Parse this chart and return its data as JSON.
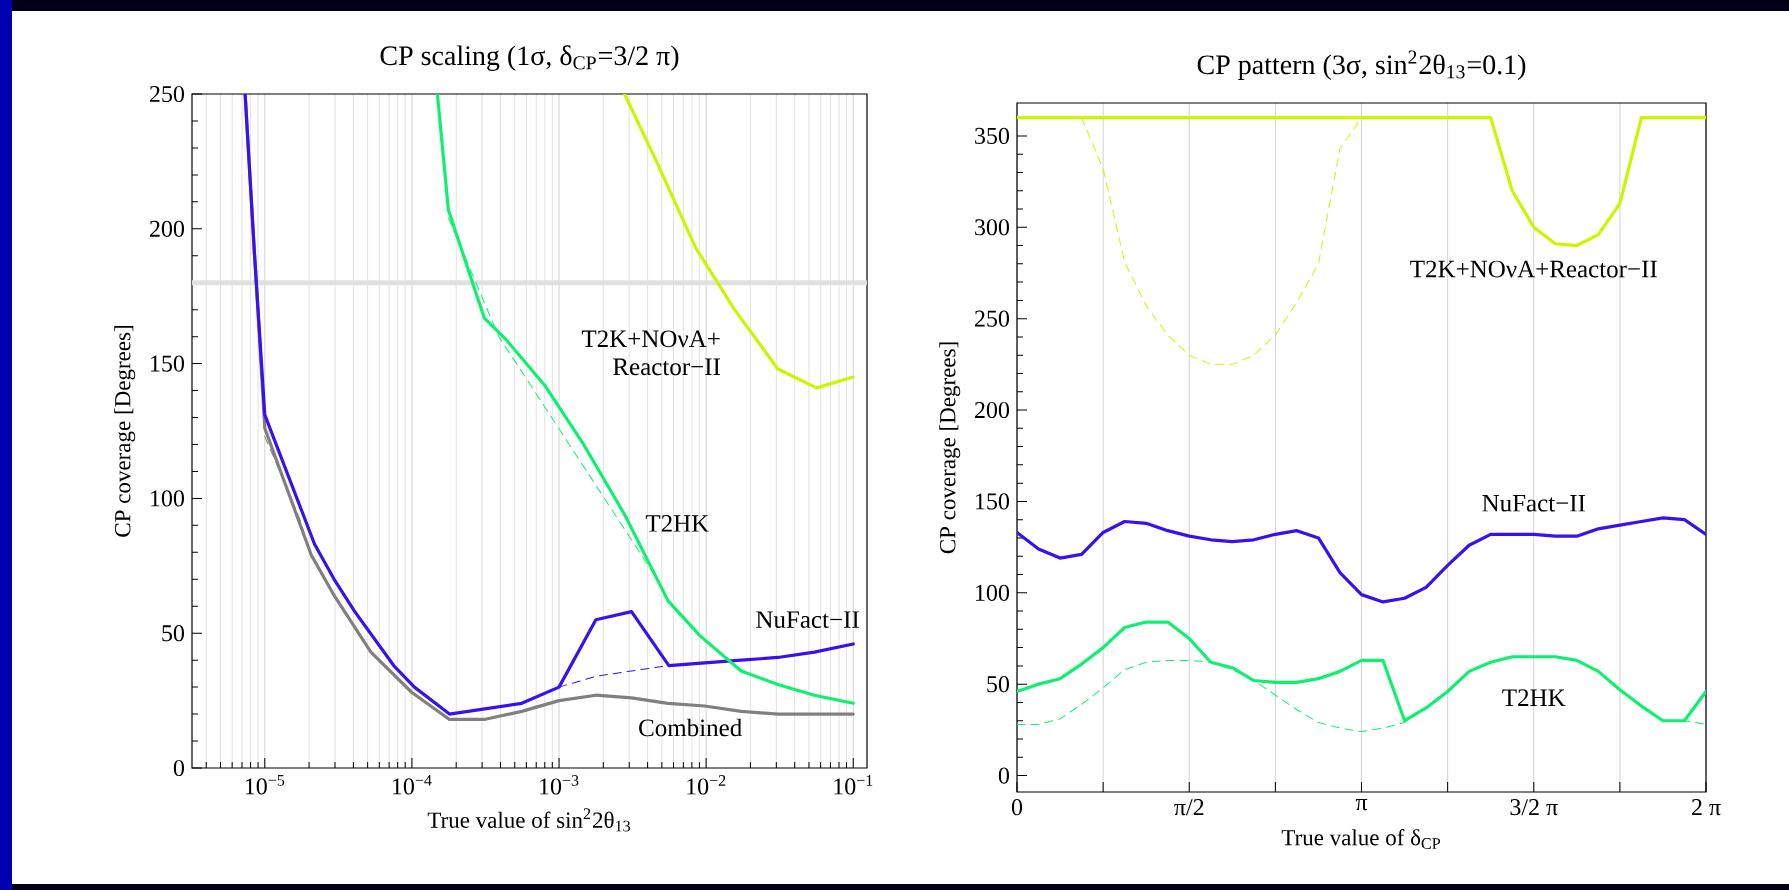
{
  "chart_data": [
    {
      "type": "line",
      "title": "CP scaling (1σ, δ$_{CP}$=3/2 π)",
      "xlabel": "True value of sin$^{2}$2θ$_{13}$",
      "ylabel": "CP coverage [Degrees]",
      "log": "x",
      "grid": "x",
      "marker": "none",
      "line_style": "solid",
      "xlim": [
        3.2e-06,
        0.124
      ],
      "ylim": [
        0,
        250
      ],
      "xticks": [
        {
          "value": 1e-05,
          "label": "10$^{−5}$"
        },
        {
          "value": 0.0001,
          "label": "10$^{−4}$"
        },
        {
          "value": 0.001,
          "label": "10$^{−3}$"
        },
        {
          "value": 0.01,
          "label": "10$^{−2}$"
        },
        {
          "value": 0.1,
          "label": "10$^{−1}$"
        }
      ],
      "yticks": [
        0,
        50,
        100,
        150,
        200,
        250
      ],
      "ref_lines": [
        {
          "axis": "y",
          "value": 180,
          "color": "#e0e0e0"
        }
      ],
      "series": [
        {
          "color": "#808080",
          "line_style": "dashed",
          "x": [
            1e-05,
            1.74e-05,
            2.07e-05
          ],
          "values": [
            123,
            92,
            78
          ]
        },
        {
          "name": "Combined",
          "color": "#808080",
          "x": [
            7.35e-06,
            1e-05,
            2.07e-05,
            2.96e-05,
            5.26e-05,
            0.0001,
            0.00018,
            0.00031,
            0.000558,
            0.001,
            0.00178,
            0.00311,
            0.0055,
            0.00977,
            0.0173,
            0.0307,
            0.0544,
            0.1
          ],
          "values": [
            250,
            126,
            79,
            64,
            43,
            28,
            18,
            18,
            21,
            25,
            27,
            26,
            24,
            23,
            21,
            20,
            20,
            20
          ]
        },
        {
          "color": "#3a10f0",
          "line_style": "dashed",
          "x": [
            0.001,
            0.00178,
            0.00311,
            0.00558
          ],
          "values": [
            30,
            34,
            36,
            38
          ]
        },
        {
          "name": "NuFact−II",
          "color": "#3a10f0",
          "x": [
            7.35e-06,
            8.5e-06,
            1e-05,
            2.18e-05,
            2.96e-05,
            4.09e-05,
            7.52e-05,
            0.000104,
            0.00018,
            0.000558,
            0.001,
            0.00178,
            0.00311,
            0.00558,
            0.00977,
            0.0173,
            0.0307,
            0.0544,
            0.1
          ],
          "values": [
            250,
            191,
            131,
            83,
            70,
            58,
            38,
            30,
            20,
            24,
            30,
            55,
            58,
            38,
            39,
            40,
            41,
            43,
            46
          ]
        },
        {
          "color": "#10f070",
          "line_style": "dashed",
          "x": [
            0.000177,
            0.00039,
            0.00478,
            0.00551
          ],
          "values": [
            204,
            160,
            69,
            62
          ]
        },
        {
          "name": "T2HK",
          "color": "#10f070",
          "x": [
            0.000149,
            0.000177,
            0.00031,
            0.000435,
            0.000798,
            0.00147,
            0.00279,
            0.00551,
            0.0091,
            0.0173,
            0.0307,
            0.0544,
            0.1
          ],
          "values": [
            250,
            207,
            167,
            159,
            142,
            120,
            94,
            62,
            49,
            36,
            31,
            27,
            24
          ]
        },
        {
          "name": "T2K+NOνA+ Reactor−II",
          "color": "#ccf500",
          "x": [
            0.00279,
            0.00478,
            0.00847,
            0.0156,
            0.0307,
            0.0564,
            0.1
          ],
          "values": [
            250,
            223,
            193,
            170,
            148,
            141,
            145
          ]
        }
      ]
    },
    {
      "type": "line",
      "title": "CP pattern (3σ, sin$^{2}$2θ$_{13}$=0.1)",
      "xlabel": "True value of δ$_{CP}$",
      "ylabel": "CP coverage [Degrees]",
      "grid": "x",
      "marker": "none",
      "line_style": "solid",
      "xlim": [
        0,
        6.2832
      ],
      "ylim": [
        -9,
        368
      ],
      "xticks": [
        {
          "value": 0,
          "label": "0"
        },
        {
          "value": 0.7854,
          "label": null
        },
        {
          "value": 1.5708,
          "label": "π/2"
        },
        {
          "value": 2.3562,
          "label": null
        },
        {
          "value": 3.1416,
          "label": "π"
        },
        {
          "value": 3.927,
          "label": null
        },
        {
          "value": 4.7124,
          "label": "3/2 π"
        },
        {
          "value": 5.4978,
          "label": null
        },
        {
          "value": 6.2832,
          "label": "2 π"
        }
      ],
      "yticks": [
        0,
        50,
        100,
        150,
        200,
        250,
        300,
        350
      ],
      "x": [
        0,
        0.1963,
        0.3927,
        0.589,
        0.7854,
        0.9817,
        1.1781,
        1.3744,
        1.5708,
        1.7671,
        1.9635,
        2.1598,
        2.3562,
        2.5525,
        2.7489,
        2.9452,
        3.1416,
        3.3379,
        3.5343,
        3.7306,
        3.927,
        4.1233,
        4.3197,
        4.516,
        4.7124,
        4.9087,
        5.1051,
        5.3014,
        5.4978,
        5.6941,
        5.8905,
        6.0868,
        6.2832
      ],
      "series": [
        {
          "color": "#ccf500",
          "line_style": "dashed",
          "x": [
            0.589,
            0.7854,
            0.9817,
            1.1781,
            1.3744,
            1.5708,
            1.7671,
            1.9635,
            2.1598,
            2.3562,
            2.5525,
            2.7489,
            2.9452,
            3.1416
          ],
          "values": [
            360,
            332,
            281,
            257,
            241,
            230,
            225,
            225,
            230,
            241,
            259,
            280,
            343,
            360
          ]
        },
        {
          "name": "T2K+NOνA+Reactor−II",
          "color": "#ccf500",
          "values": [
            360,
            360,
            360,
            360,
            360,
            360,
            360,
            360,
            360,
            360,
            360,
            360,
            360,
            360,
            360,
            360,
            360,
            360,
            360,
            360,
            360,
            360,
            360,
            320,
            300,
            291,
            290,
            296,
            313,
            360,
            360,
            360,
            360
          ]
        },
        {
          "name": "NuFact−II",
          "color": "#3a10f0",
          "values": [
            133,
            124,
            119,
            121,
            133,
            139,
            138,
            134,
            131,
            129,
            128,
            129,
            132,
            134,
            130,
            111,
            99,
            95,
            97,
            103,
            115,
            126,
            132,
            132,
            132,
            131,
            131,
            135,
            137,
            139,
            141,
            140,
            132
          ]
        },
        {
          "color": "#10f070",
          "line_style": "dashed",
          "values": [
            28,
            28,
            31,
            39,
            48,
            58,
            62,
            63,
            63,
            62,
            58,
            52,
            44,
            36,
            29,
            26,
            24,
            26,
            29,
            37,
            46,
            57,
            62,
            65,
            65,
            65,
            63,
            57,
            47,
            38,
            30,
            30,
            28
          ]
        },
        {
          "name": "T2HK",
          "color": "#10f070",
          "values": [
            46,
            50,
            53,
            61,
            70,
            81,
            84,
            84,
            75,
            62,
            59,
            52,
            51,
            51,
            53,
            57,
            63,
            63,
            30,
            37,
            46,
            57,
            62,
            65,
            65,
            65,
            63,
            57,
            47,
            38,
            30,
            30,
            46
          ]
        }
      ]
    }
  ]
}
